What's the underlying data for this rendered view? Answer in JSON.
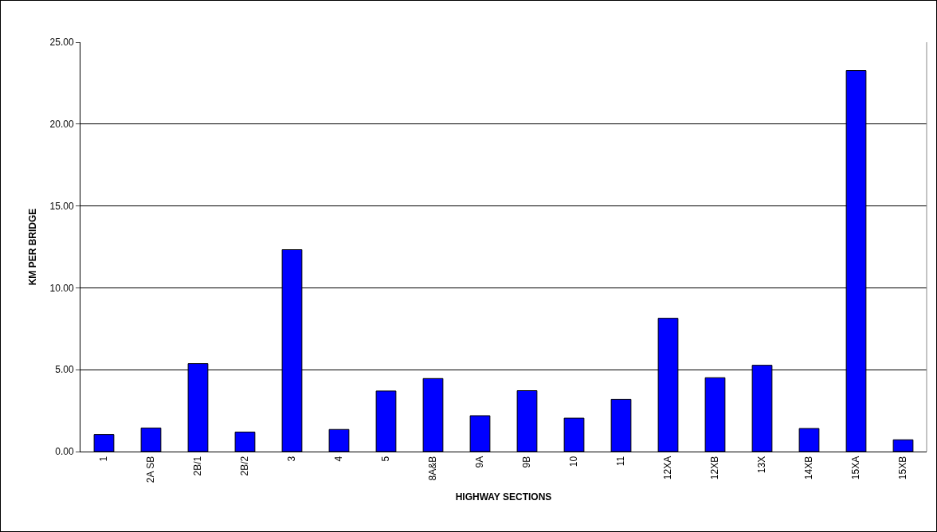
{
  "chart_data": {
    "type": "bar",
    "xlabel": "HIGHWAY SECTIONS",
    "ylabel": "KM PER BRIDGE",
    "categories": [
      "1",
      "2A SB",
      "2B/1",
      "2B/2",
      "3",
      "4",
      "5",
      "8A&B",
      "9A",
      "9B",
      "10",
      "11",
      "12XA",
      "12XB",
      "13X",
      "14XB",
      "15XA",
      "15XB"
    ],
    "values": [
      1.04,
      1.44,
      5.37,
      1.19,
      12.33,
      1.35,
      3.7,
      4.46,
      2.19,
      3.72,
      2.04,
      3.19,
      8.14,
      4.51,
      5.27,
      1.41,
      23.27,
      0.72
    ],
    "color": "#0000ff",
    "ylim": [
      0,
      25
    ],
    "yticks": [
      {
        "value": 0,
        "label": "0.00"
      },
      {
        "value": 5,
        "label": "5.00"
      },
      {
        "value": 10,
        "label": "10.00"
      },
      {
        "value": 15,
        "label": "15.00"
      },
      {
        "value": 20,
        "label": "20.00"
      },
      {
        "value": 25,
        "label": "25.00"
      }
    ],
    "grid": "y",
    "legend": false
  }
}
